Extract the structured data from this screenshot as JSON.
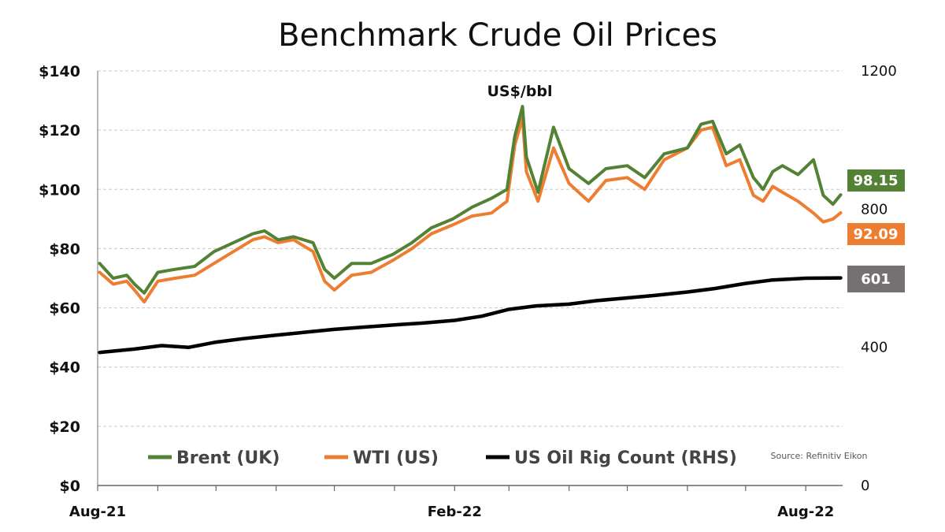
{
  "chart_data": {
    "type": "line",
    "title": "Benchmark Crude Oil Prices",
    "unit_label": "US$/bbl",
    "source": "Source: Refinitiv Eikon",
    "x_tick_labels": [
      "Aug-21",
      "Feb-22",
      "Aug-22"
    ],
    "y_left": {
      "ticks": [
        "$0",
        "$20",
        "$40",
        "$60",
        "$80",
        "$100",
        "$120",
        "$140"
      ],
      "min": 0,
      "max": 140
    },
    "y_right": {
      "ticks": [
        "0",
        "400",
        "800",
        "1200"
      ],
      "min": 0,
      "max": 1200
    },
    "grid": true,
    "legend_position": "bottom",
    "series": [
      {
        "name": "Brent (UK)",
        "axis": "left",
        "color": "#548235",
        "last_value_label": "98.15",
        "x": [
          "2021-08-02",
          "2021-08-09",
          "2021-08-16",
          "2021-08-20",
          "2021-08-25",
          "2021-09-01",
          "2021-09-10",
          "2021-09-20",
          "2021-09-30",
          "2021-10-10",
          "2021-10-20",
          "2021-10-26",
          "2021-11-02",
          "2021-11-10",
          "2021-11-20",
          "2021-11-26",
          "2021-12-01",
          "2021-12-10",
          "2021-12-20",
          "2021-12-31",
          "2022-01-10",
          "2022-01-20",
          "2022-01-31",
          "2022-02-10",
          "2022-02-20",
          "2022-02-28",
          "2022-03-04",
          "2022-03-08",
          "2022-03-10",
          "2022-03-16",
          "2022-03-24",
          "2022-04-01",
          "2022-04-11",
          "2022-04-20",
          "2022-05-01",
          "2022-05-10",
          "2022-05-20",
          "2022-06-01",
          "2022-06-08",
          "2022-06-14",
          "2022-06-21",
          "2022-06-28",
          "2022-07-05",
          "2022-07-10",
          "2022-07-15",
          "2022-07-20",
          "2022-07-28",
          "2022-08-05",
          "2022-08-10",
          "2022-08-15",
          "2022-08-19"
        ],
        "values": [
          75,
          70,
          71,
          68,
          65,
          72,
          73,
          74,
          79,
          82,
          85,
          86,
          83,
          84,
          82,
          73,
          70,
          75,
          75,
          78,
          82,
          87,
          90,
          94,
          97,
          100,
          118,
          128,
          111,
          99,
          121,
          107,
          102,
          107,
          108,
          104,
          112,
          114,
          122,
          123,
          112,
          115,
          104,
          100,
          106,
          108,
          105,
          110,
          98,
          95,
          98.15
        ]
      },
      {
        "name": "WTI (US)",
        "axis": "left",
        "color": "#ED7D31",
        "last_value_label": "92.09",
        "x": [
          "2021-08-02",
          "2021-08-09",
          "2021-08-16",
          "2021-08-20",
          "2021-08-25",
          "2021-09-01",
          "2021-09-10",
          "2021-09-20",
          "2021-09-30",
          "2021-10-10",
          "2021-10-20",
          "2021-10-26",
          "2021-11-02",
          "2021-11-10",
          "2021-11-20",
          "2021-11-26",
          "2021-12-01",
          "2021-12-10",
          "2021-12-20",
          "2021-12-31",
          "2022-01-10",
          "2022-01-20",
          "2022-01-31",
          "2022-02-10",
          "2022-02-20",
          "2022-02-28",
          "2022-03-04",
          "2022-03-08",
          "2022-03-10",
          "2022-03-16",
          "2022-03-24",
          "2022-04-01",
          "2022-04-11",
          "2022-04-20",
          "2022-05-01",
          "2022-05-10",
          "2022-05-20",
          "2022-06-01",
          "2022-06-08",
          "2022-06-14",
          "2022-06-21",
          "2022-06-28",
          "2022-07-05",
          "2022-07-10",
          "2022-07-15",
          "2022-07-20",
          "2022-07-28",
          "2022-08-05",
          "2022-08-10",
          "2022-08-15",
          "2022-08-19"
        ],
        "values": [
          72,
          68,
          69,
          66,
          62,
          69,
          70,
          71,
          75,
          79,
          83,
          84,
          82,
          83,
          79,
          69,
          66,
          71,
          72,
          76,
          80,
          85,
          88,
          91,
          92,
          96,
          115,
          124,
          106,
          96,
          114,
          102,
          96,
          103,
          104,
          100,
          110,
          114,
          120,
          121,
          108,
          110,
          98,
          96,
          101,
          99,
          96,
          92,
          89,
          90,
          92.09
        ]
      },
      {
        "name": "US Oil Rig Count (RHS)",
        "axis": "right",
        "color": "#000000",
        "last_value_label": "601",
        "x": [
          "2021-08-02",
          "2021-08-20",
          "2021-09-03",
          "2021-09-17",
          "2021-10-01",
          "2021-10-15",
          "2021-11-01",
          "2021-11-15",
          "2021-12-01",
          "2021-12-15",
          "2022-01-01",
          "2022-01-15",
          "2022-02-01",
          "2022-02-15",
          "2022-03-01",
          "2022-03-15",
          "2022-04-01",
          "2022-04-15",
          "2022-05-01",
          "2022-05-15",
          "2022-06-01",
          "2022-06-15",
          "2022-07-01",
          "2022-07-15",
          "2022-08-01",
          "2022-08-19"
        ],
        "values": [
          385,
          395,
          405,
          400,
          415,
          425,
          435,
          443,
          452,
          458,
          465,
          470,
          478,
          490,
          510,
          520,
          525,
          535,
          543,
          550,
          560,
          570,
          585,
          595,
          600,
          601
        ]
      }
    ]
  }
}
